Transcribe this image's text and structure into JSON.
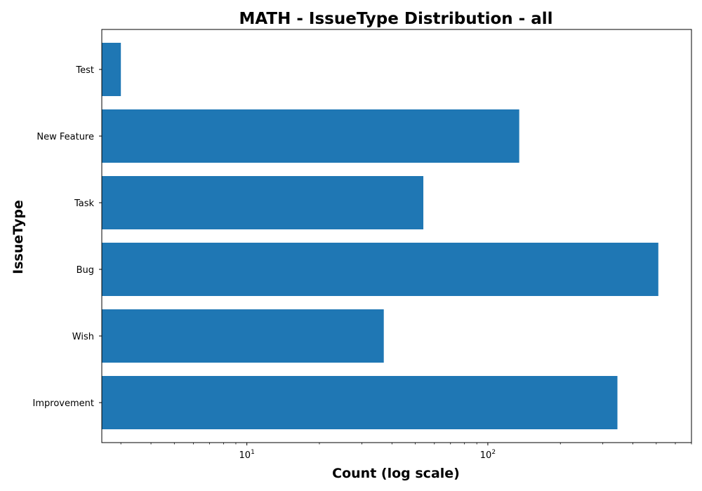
{
  "chart_data": {
    "type": "bar",
    "orientation": "horizontal",
    "title": "MATH - IssueType Distribution - all",
    "xlabel": "Count (log scale)",
    "ylabel": "IssueType",
    "x_scale": "log",
    "xlim": [
      2.5,
      700
    ],
    "x_ticks": [
      {
        "value": 10,
        "base": "10",
        "exp": "1"
      },
      {
        "value": 100,
        "base": "10",
        "exp": "2"
      }
    ],
    "categories": [
      "Improvement",
      "Wish",
      "Bug",
      "Task",
      "New Feature",
      "Test"
    ],
    "values": [
      345,
      37,
      510,
      54,
      135,
      3
    ],
    "bar_color": "#1f77b4",
    "grid": false,
    "legend": "none"
  }
}
